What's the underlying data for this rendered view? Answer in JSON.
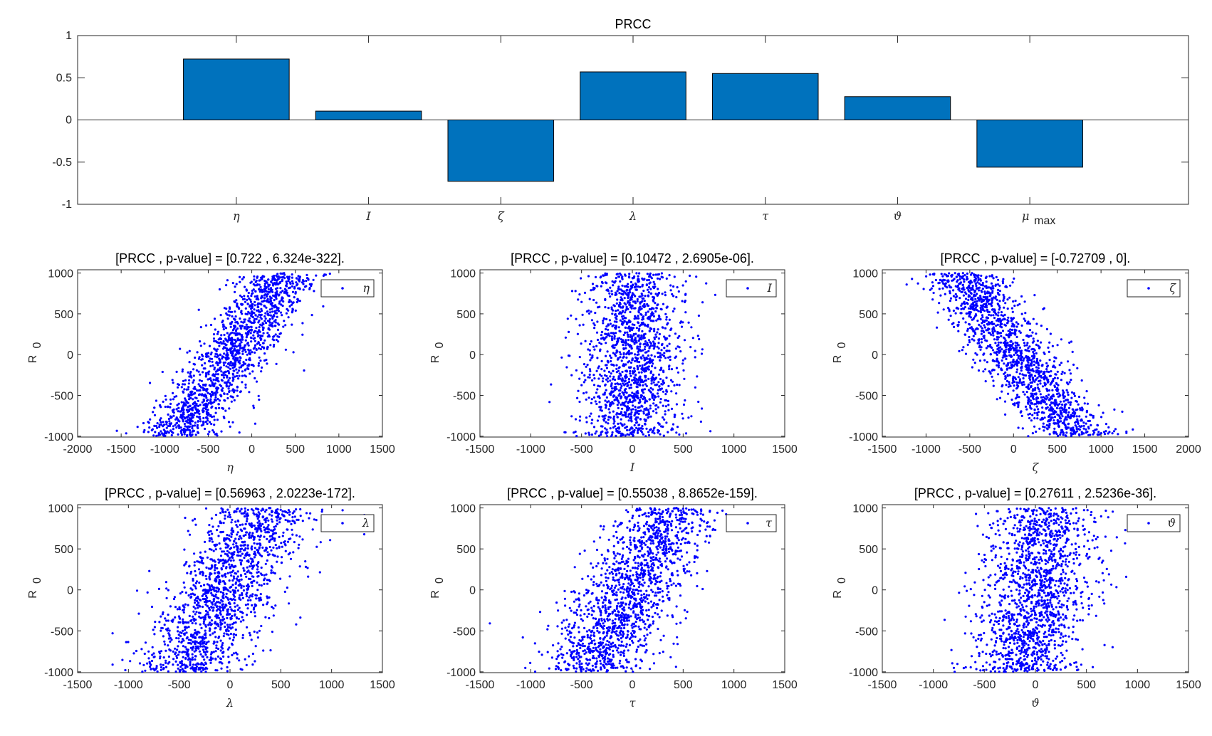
{
  "chart_data": [
    {
      "type": "bar",
      "title": "PRCC",
      "categories": [
        "η",
        "I",
        "ζ",
        "λ",
        "τ",
        "ϑ",
        "μ"
      ],
      "category_subscripts": [
        "",
        "",
        "",
        "",
        "",
        "",
        "max"
      ],
      "values": [
        0.722,
        0.10472,
        -0.72709,
        0.56963,
        0.55038,
        0.27611,
        -0.56
      ],
      "ylim": [
        -1,
        1
      ],
      "yticks": [
        "-1",
        "-0.5",
        "0",
        "0.5",
        "1"
      ],
      "bar_color": "#0072BD",
      "grid": false
    },
    {
      "type": "scatter",
      "title": "[PRCC , p-value] = [0.722 , 6.324e-322].",
      "xlabel": "η",
      "ylabel": "R",
      "ylabel_sub": "0",
      "legend": "η",
      "legend_position": "top-right",
      "prcc": 0.722,
      "p_value": "6.324e-322",
      "xlim": [
        -2000,
        1500
      ],
      "xticks": [
        "-2000",
        "-1500",
        "-1000",
        "-500",
        "0",
        "500",
        "1000",
        "1500"
      ],
      "ylim": [
        -1000,
        1000
      ],
      "yticks": [
        "-1000",
        "-500",
        "0",
        "500",
        "1000"
      ],
      "color": "#0000FF"
    },
    {
      "type": "scatter",
      "title": "[PRCC , p-value] = [0.10472 , 2.6905e-06].",
      "xlabel": "I",
      "ylabel": "R",
      "ylabel_sub": "0",
      "legend": "I",
      "legend_position": "top-right",
      "prcc": 0.10472,
      "p_value": "2.6905e-06",
      "xlim": [
        -1500,
        1500
      ],
      "xticks": [
        "-1500",
        "-1000",
        "-500",
        "0",
        "500",
        "1000",
        "1500"
      ],
      "ylim": [
        -1000,
        1000
      ],
      "yticks": [
        "-1000",
        "-500",
        "0",
        "500",
        "1000"
      ],
      "color": "#0000FF"
    },
    {
      "type": "scatter",
      "title": "[PRCC , p-value] = [-0.72709 , 0].",
      "xlabel": "ζ",
      "ylabel": "R",
      "ylabel_sub": "0",
      "legend": "ζ",
      "legend_position": "top-right",
      "prcc": -0.72709,
      "p_value": "0",
      "xlim": [
        -1500,
        2000
      ],
      "xticks": [
        "-1500",
        "-1000",
        "-500",
        "0",
        "500",
        "1000",
        "1500",
        "2000"
      ],
      "ylim": [
        -1000,
        1000
      ],
      "yticks": [
        "-1000",
        "-500",
        "0",
        "500",
        "1000"
      ],
      "color": "#0000FF"
    },
    {
      "type": "scatter",
      "title": "[PRCC , p-value] = [0.56963 , 2.0223e-172].",
      "xlabel": "λ",
      "ylabel": "R",
      "ylabel_sub": "0",
      "legend": "λ",
      "legend_position": "top-right",
      "prcc": 0.56963,
      "p_value": "2.0223e-172",
      "xlim": [
        -1500,
        1500
      ],
      "xticks": [
        "-1500",
        "-1000",
        "-500",
        "0",
        "500",
        "1000",
        "1500"
      ],
      "ylim": [
        -1000,
        1000
      ],
      "yticks": [
        "-1000",
        "-500",
        "0",
        "500",
        "1000"
      ],
      "color": "#0000FF"
    },
    {
      "type": "scatter",
      "title": "[PRCC , p-value] = [0.55038 , 8.8652e-159].",
      "xlabel": "τ",
      "ylabel": "R",
      "ylabel_sub": "0",
      "legend": "τ",
      "legend_position": "top-right",
      "prcc": 0.55038,
      "p_value": "8.8652e-159",
      "xlim": [
        -1500,
        1500
      ],
      "xticks": [
        "-1500",
        "-1000",
        "-500",
        "0",
        "500",
        "1000",
        "1500"
      ],
      "ylim": [
        -1000,
        1000
      ],
      "yticks": [
        "-1000",
        "-500",
        "0",
        "500",
        "1000"
      ],
      "color": "#0000FF"
    },
    {
      "type": "scatter",
      "title": "[PRCC , p-value] = [0.27611 , 2.5236e-36].",
      "xlabel": "ϑ",
      "ylabel": "R",
      "ylabel_sub": "0",
      "legend": "ϑ",
      "legend_position": "top-right",
      "prcc": 0.27611,
      "p_value": "2.5236e-36",
      "xlim": [
        -1500,
        1500
      ],
      "xticks": [
        "-1500",
        "-1000",
        "-500",
        "0",
        "500",
        "1000",
        "1500"
      ],
      "ylim": [
        -1000,
        1000
      ],
      "yticks": [
        "-1000",
        "-500",
        "0",
        "500",
        "1000"
      ],
      "color": "#0000FF"
    }
  ]
}
